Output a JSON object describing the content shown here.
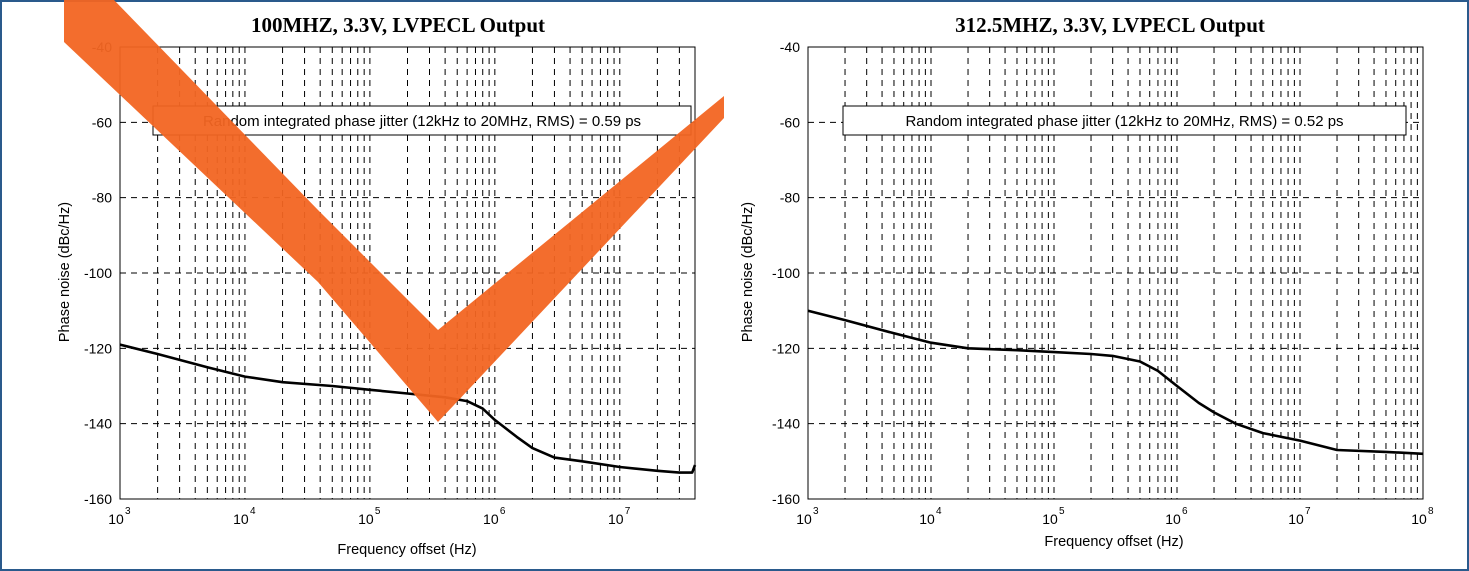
{
  "colors": {
    "frame_border": "#2a5a8c",
    "watermark": "#f26522",
    "line": "#000000",
    "grid": "#000000"
  },
  "watermark": {
    "shape": "check-mark",
    "color": "#f26522"
  },
  "chart_data": [
    {
      "type": "line",
      "title": "100MHZ, 3.3V, LVPECL Output",
      "xlabel": "Frequency offset (Hz)",
      "ylabel": "Phase noise (dBc/Hz)",
      "xscale": "log",
      "xlim": [
        1000,
        40000000
      ],
      "ylim": [
        -160,
        -40
      ],
      "yticks": [
        "-40",
        "-60",
        "-80",
        "-100",
        "-120",
        "-140",
        "-160"
      ],
      "xticks": [
        {
          "base": "10",
          "exp": "3"
        },
        {
          "base": "10",
          "exp": "4"
        },
        {
          "base": "10",
          "exp": "5"
        },
        {
          "base": "10",
          "exp": "6"
        },
        {
          "base": "10",
          "exp": "7"
        }
      ],
      "grid": true,
      "annotation": "Random integrated phase jitter (12kHz to 20MHz, RMS) = 0.59 ps",
      "series": [
        {
          "x": [
            1000,
            2000,
            5000,
            10000,
            20000,
            50000,
            100000,
            200000,
            400000,
            600000,
            800000,
            1000000,
            1500000,
            2000000,
            3000000,
            5000000,
            10000000,
            20000000,
            30000000,
            38000000,
            40000000
          ],
          "y": [
            -119,
            -121.5,
            -125,
            -127.5,
            -129,
            -130,
            -131,
            -132,
            -133,
            -134,
            -136,
            -139,
            -143.5,
            -146.5,
            -149,
            -150,
            -151.5,
            -152.5,
            -153,
            -153,
            -151
          ]
        }
      ]
    },
    {
      "type": "line",
      "title": "312.5MHZ, 3.3V, LVPECL Output",
      "xlabel": "Frequency offset (Hz)",
      "ylabel": "Phase noise (dBc/Hz)",
      "xscale": "log",
      "xlim": [
        1000,
        100000000
      ],
      "ylim": [
        -160,
        -40
      ],
      "yticks": [
        "-40",
        "-60",
        "-80",
        "-100",
        "-120",
        "-140",
        "-160"
      ],
      "xticks": [
        {
          "base": "10",
          "exp": "3"
        },
        {
          "base": "10",
          "exp": "4"
        },
        {
          "base": "10",
          "exp": "5"
        },
        {
          "base": "10",
          "exp": "6"
        },
        {
          "base": "10",
          "exp": "7"
        },
        {
          "base": "10",
          "exp": "8"
        }
      ],
      "grid": true,
      "annotation": "Random integrated phase jitter (12kHz to 20MHz, RMS) = 0.52 ps",
      "series": [
        {
          "x": [
            1000,
            2000,
            5000,
            10000,
            20000,
            50000,
            100000,
            200000,
            300000,
            500000,
            700000,
            1000000,
            1500000,
            2000000,
            3000000,
            5000000,
            10000000,
            20000000,
            50000000,
            100000000
          ],
          "y": [
            -110,
            -112.5,
            -116,
            -118.5,
            -120,
            -120.5,
            -121,
            -121.5,
            -122,
            -123.5,
            -126,
            -130,
            -134.5,
            -137,
            -140,
            -142.5,
            -144.5,
            -147,
            -147.5,
            -148
          ]
        }
      ]
    }
  ]
}
